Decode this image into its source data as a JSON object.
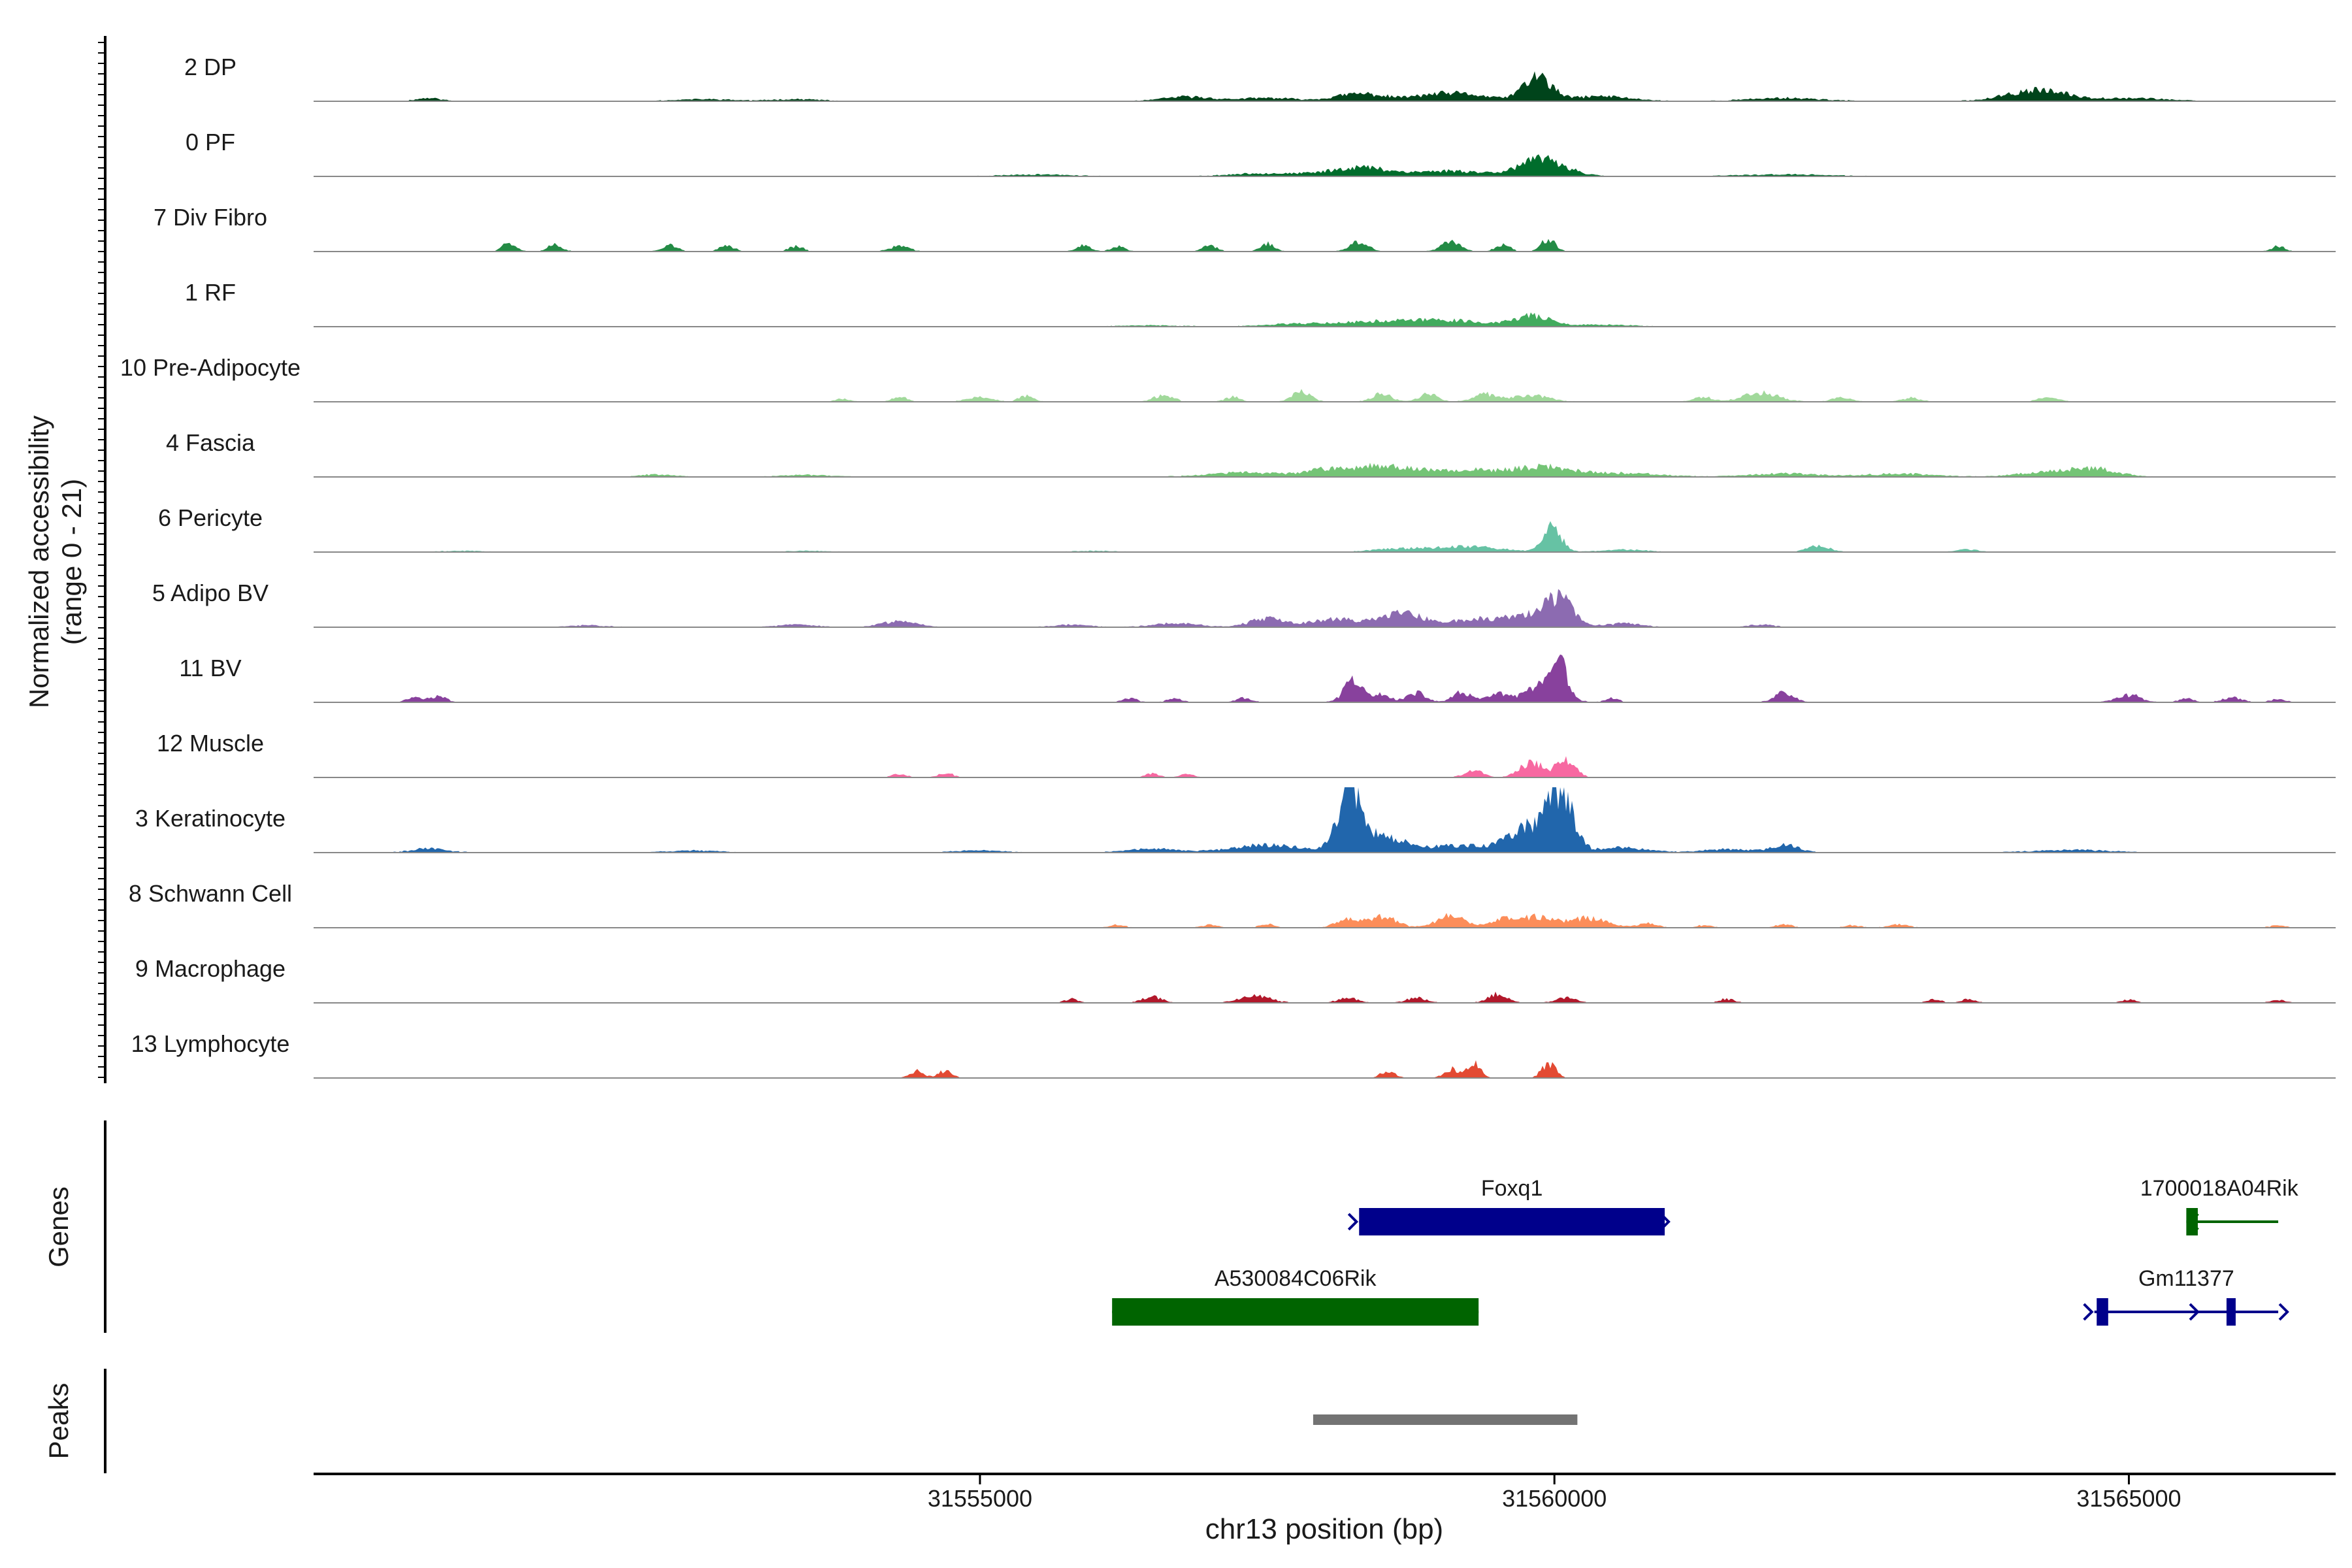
{
  "chart_data": {
    "type": "area",
    "title": "",
    "chromosome": "chr13",
    "x_range": [
      31549200,
      31566800
    ],
    "xlabel": "chr13 position (bp)",
    "x_ticks": [
      31555000,
      31560000,
      31565000
    ],
    "x_tick_labels": [
      "31555000",
      "31560000",
      "31565000"
    ],
    "ylabel_line1": "Normalized accessibility",
    "ylabel_line2": "(range 0 - 21)",
    "y_range": [
      0,
      21
    ],
    "tracks": [
      {
        "name": "2 DP",
        "color": "#00441b",
        "noise": 0.35,
        "seed": 11,
        "peaks": [
          [
            31550200,
            0.5,
            100
          ],
          [
            31552600,
            0.3,
            250
          ],
          [
            31553400,
            0.3,
            200
          ],
          [
            31556800,
            0.7,
            200
          ],
          [
            31557500,
            0.5,
            250
          ],
          [
            31558300,
            1.2,
            200
          ],
          [
            31559100,
            1.3,
            300
          ],
          [
            31559850,
            4.0,
            120
          ],
          [
            31560400,
            0.8,
            250
          ],
          [
            31562000,
            0.5,
            300
          ],
          [
            31564200,
            1.8,
            250
          ],
          [
            31565000,
            0.5,
            300
          ]
        ]
      },
      {
        "name": "0 PF",
        "color": "#006d2c",
        "noise": 0.2,
        "seed": 23,
        "peaks": [
          [
            31555500,
            0.3,
            300
          ],
          [
            31557500,
            0.5,
            300
          ],
          [
            31558300,
            1.5,
            250
          ],
          [
            31559100,
            0.9,
            300
          ],
          [
            31559900,
            2.8,
            200
          ],
          [
            31562000,
            0.3,
            400
          ]
        ]
      },
      {
        "name": "7 Div Fibro",
        "color": "#238b45",
        "noise": 0.25,
        "seed": 37,
        "peaks": [
          [
            31550900,
            1.5,
            60
          ],
          [
            31551300,
            1.2,
            60
          ],
          [
            31552300,
            1.2,
            60
          ],
          [
            31552800,
            1.0,
            60
          ],
          [
            31553400,
            0.9,
            60
          ],
          [
            31554300,
            0.9,
            80
          ],
          [
            31555900,
            1.0,
            60
          ],
          [
            31556200,
            0.8,
            60
          ],
          [
            31557000,
            1.0,
            60
          ],
          [
            31557500,
            1.3,
            60
          ],
          [
            31558300,
            1.5,
            80
          ],
          [
            31559100,
            1.6,
            80
          ],
          [
            31559550,
            1.2,
            60
          ],
          [
            31559950,
            2.2,
            60
          ],
          [
            31566300,
            0.8,
            60
          ]
        ]
      },
      {
        "name": "1 RF",
        "color": "#41ab5d",
        "noise": 0.15,
        "seed": 41,
        "peaks": [
          [
            31556500,
            0.2,
            300
          ],
          [
            31557800,
            0.5,
            300
          ],
          [
            31558500,
            0.8,
            300
          ],
          [
            31559100,
            1.0,
            300
          ],
          [
            31559800,
            1.8,
            150
          ],
          [
            31560400,
            0.3,
            300
          ]
        ]
      },
      {
        "name": "10 Pre-Adipocyte",
        "color": "#a1d99b",
        "noise": 0.3,
        "seed": 53,
        "peaks": [
          [
            31553800,
            0.5,
            60
          ],
          [
            31554300,
            1.0,
            60
          ],
          [
            31555000,
            0.8,
            100
          ],
          [
            31555400,
            1.0,
            60
          ],
          [
            31556600,
            1.1,
            80
          ],
          [
            31557200,
            0.8,
            60
          ],
          [
            31557800,
            1.6,
            80
          ],
          [
            31558500,
            1.4,
            80
          ],
          [
            31558900,
            1.3,
            80
          ],
          [
            31559400,
            1.2,
            100
          ],
          [
            31559800,
            1.1,
            150
          ],
          [
            31561300,
            0.8,
            80
          ],
          [
            31561800,
            1.5,
            150
          ],
          [
            31562500,
            0.7,
            80
          ],
          [
            31563100,
            0.6,
            80
          ],
          [
            31564300,
            0.8,
            80
          ]
        ]
      },
      {
        "name": "4 Fascia",
        "color": "#74c476",
        "noise": 0.3,
        "seed": 67,
        "peaks": [
          [
            31552200,
            0.4,
            150
          ],
          [
            31553500,
            0.3,
            200
          ],
          [
            31557300,
            0.7,
            300
          ],
          [
            31558000,
            1.0,
            200
          ],
          [
            31558500,
            1.8,
            250
          ],
          [
            31559200,
            1.1,
            300
          ],
          [
            31559900,
            1.6,
            250
          ],
          [
            31560600,
            0.6,
            300
          ],
          [
            31562000,
            0.5,
            300
          ],
          [
            31563000,
            0.5,
            300
          ],
          [
            31564300,
            0.8,
            250
          ],
          [
            31564700,
            1.2,
            200
          ]
        ]
      },
      {
        "name": "6 Pericyte",
        "color": "#66c2a4",
        "noise": 0.12,
        "seed": 79,
        "peaks": [
          [
            31550500,
            0.2,
            200
          ],
          [
            31553500,
            0.2,
            200
          ],
          [
            31556000,
            0.2,
            200
          ],
          [
            31558700,
            0.6,
            250
          ],
          [
            31559300,
            0.9,
            250
          ],
          [
            31559980,
            4.0,
            80
          ],
          [
            31560600,
            0.4,
            200
          ],
          [
            31562300,
            1.0,
            100
          ],
          [
            31563600,
            0.4,
            100
          ]
        ]
      },
      {
        "name": "5 Adipo BV",
        "color": "#8c6bb1",
        "noise": 0.3,
        "seed": 83,
        "peaks": [
          [
            31551600,
            0.3,
            150
          ],
          [
            31553400,
            0.4,
            150
          ],
          [
            31554300,
            1.0,
            150
          ],
          [
            31555800,
            0.4,
            150
          ],
          [
            31556700,
            0.6,
            200
          ],
          [
            31557500,
            1.4,
            150
          ],
          [
            31558100,
            1.4,
            200
          ],
          [
            31558700,
            2.2,
            200
          ],
          [
            31559300,
            1.4,
            150
          ],
          [
            31559700,
            2.0,
            150
          ],
          [
            31560030,
            5.0,
            120
          ],
          [
            31560600,
            0.6,
            150
          ],
          [
            31561800,
            0.4,
            100
          ]
        ]
      },
      {
        "name": "11 BV",
        "color": "#88419d",
        "noise": 0.35,
        "seed": 97,
        "peaks": [
          [
            31550100,
            0.9,
            80
          ],
          [
            31550300,
            0.9,
            60
          ],
          [
            31556300,
            0.7,
            60
          ],
          [
            31556700,
            0.6,
            60
          ],
          [
            31557300,
            0.7,
            60
          ],
          [
            31558250,
            3.5,
            80
          ],
          [
            31558500,
            1.2,
            80
          ],
          [
            31558800,
            1.5,
            80
          ],
          [
            31559200,
            1.6,
            80
          ],
          [
            31559500,
            1.4,
            80
          ],
          [
            31559900,
            2.8,
            150
          ],
          [
            31560050,
            5.0,
            60
          ],
          [
            31560500,
            0.6,
            60
          ],
          [
            31562000,
            1.6,
            80
          ],
          [
            31565000,
            1.2,
            100
          ],
          [
            31565500,
            0.6,
            60
          ],
          [
            31565900,
            0.8,
            80
          ],
          [
            31566300,
            0.5,
            60
          ]
        ]
      },
      {
        "name": "12 Muscle",
        "color": "#f768a1",
        "noise": 0.15,
        "seed": 101,
        "peaks": [
          [
            31554300,
            0.6,
            60
          ],
          [
            31554700,
            0.8,
            60
          ],
          [
            31556500,
            0.6,
            60
          ],
          [
            31556800,
            0.6,
            60
          ],
          [
            31559300,
            1.2,
            80
          ],
          [
            31559800,
            2.5,
            100
          ],
          [
            31560100,
            3.0,
            80
          ]
        ]
      },
      {
        "name": "3 Keratinocyte",
        "color": "#2166ac",
        "noise": 0.4,
        "seed": 113,
        "peaks": [
          [
            31550200,
            0.6,
            150
          ],
          [
            31552500,
            0.3,
            200
          ],
          [
            31555000,
            0.3,
            200
          ],
          [
            31556500,
            0.6,
            200
          ],
          [
            31557500,
            1.2,
            300
          ],
          [
            31558220,
            10.5,
            100
          ],
          [
            31558500,
            2.5,
            200
          ],
          [
            31559200,
            1.2,
            250
          ],
          [
            31559750,
            4.0,
            150
          ],
          [
            31560050,
            10.0,
            110
          ],
          [
            31560600,
            0.8,
            200
          ],
          [
            31561500,
            0.5,
            200
          ],
          [
            31562000,
            1.2,
            120
          ],
          [
            31564500,
            0.4,
            300
          ]
        ]
      },
      {
        "name": "8 Schwann Cell",
        "color": "#fc8d59",
        "noise": 0.35,
        "seed": 127,
        "peaks": [
          [
            31556200,
            0.5,
            60
          ],
          [
            31557000,
            0.5,
            60
          ],
          [
            31557500,
            0.6,
            60
          ],
          [
            31558200,
            1.3,
            100
          ],
          [
            31558500,
            1.8,
            120
          ],
          [
            31559100,
            2.1,
            120
          ],
          [
            31559550,
            1.2,
            100
          ],
          [
            31559850,
            1.8,
            150
          ],
          [
            31560300,
            1.6,
            150
          ],
          [
            31560800,
            0.7,
            80
          ],
          [
            31561300,
            0.4,
            60
          ],
          [
            31562000,
            0.6,
            60
          ],
          [
            31562600,
            0.4,
            60
          ],
          [
            31563000,
            0.5,
            80
          ],
          [
            31566300,
            0.4,
            60
          ]
        ]
      },
      {
        "name": "9 Macrophage",
        "color": "#b2182b",
        "noise": 0.4,
        "seed": 131,
        "peaks": [
          [
            31555800,
            0.6,
            60
          ],
          [
            31556500,
            1.0,
            80
          ],
          [
            31557400,
            1.2,
            120
          ],
          [
            31558200,
            0.8,
            80
          ],
          [
            31558800,
            0.8,
            80
          ],
          [
            31559500,
            1.4,
            80
          ],
          [
            31560100,
            0.8,
            80
          ],
          [
            31561500,
            0.6,
            60
          ],
          [
            31563300,
            0.5,
            60
          ],
          [
            31563600,
            0.5,
            60
          ],
          [
            31565000,
            0.5,
            60
          ],
          [
            31566300,
            0.4,
            60
          ]
        ]
      },
      {
        "name": "13 Lymphocyte",
        "color": "#e34a33",
        "noise": 0.1,
        "seed": 149,
        "peaks": [
          [
            31554450,
            1.2,
            60
          ],
          [
            31554700,
            1.2,
            60
          ],
          [
            31558550,
            1.2,
            60
          ],
          [
            31559100,
            1.5,
            60
          ],
          [
            31559300,
            2.3,
            60
          ],
          [
            31559950,
            2.4,
            60
          ]
        ]
      }
    ],
    "genes_label": "Genes",
    "genes": [
      {
        "name": "Foxq1",
        "color": "#00008b",
        "start": 31558300,
        "end": 31560960,
        "strand": "+",
        "row": 0,
        "exons": [
          [
            31558300,
            31560960
          ]
        ]
      },
      {
        "name": "1700018A04Rik",
        "color": "#006400",
        "start": 31565500,
        "end": 31566300,
        "strand": "-",
        "row": 0,
        "exons": [
          [
            31565500,
            31565600
          ]
        ]
      },
      {
        "name": "A530084C06Rik",
        "color": "#006400",
        "start": 31556150,
        "end": 31559340,
        "strand": "-",
        "row": 1,
        "exons": [
          [
            31556150,
            31559340
          ]
        ]
      },
      {
        "name": "Gm11377",
        "color": "#00008b",
        "start": 31564700,
        "end": 31566300,
        "strand": "+",
        "row": 1,
        "exons": [
          [
            31564720,
            31564820
          ],
          [
            31565850,
            31565920
          ]
        ]
      }
    ],
    "peaks_label": "Peaks",
    "peak_regions": [
      {
        "start": 31557900,
        "end": 31560200,
        "color": "#737373"
      }
    ]
  }
}
